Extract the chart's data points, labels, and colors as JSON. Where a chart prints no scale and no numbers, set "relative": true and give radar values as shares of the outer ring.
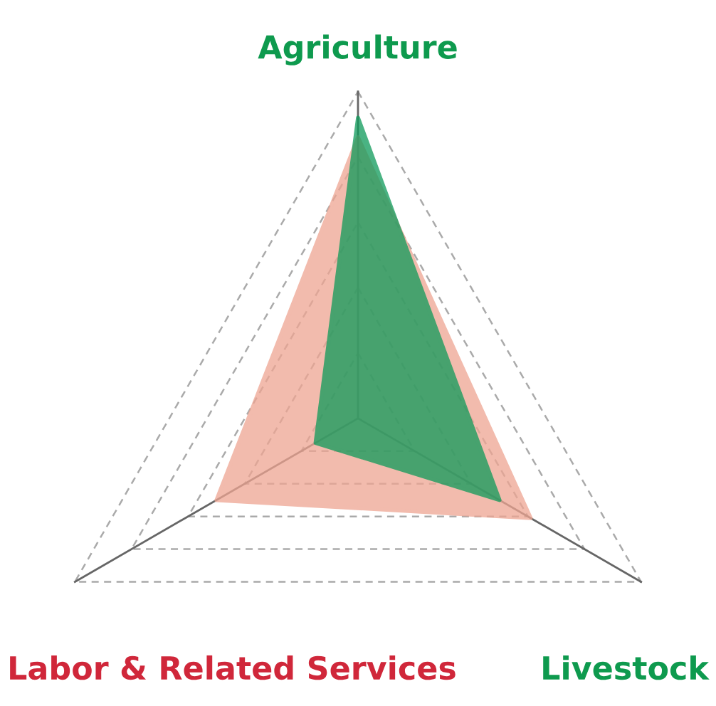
{
  "chart_data": {
    "type": "radar",
    "relative": true,
    "grid": true,
    "categories": [
      "Agriculture",
      "Livestock",
      "Labor & Related Services"
    ],
    "colors": [
      "#0e9a4e",
      "#0e9a4e",
      "#d0273a"
    ],
    "series": [
      {
        "color": "#eea592",
        "values": [
          0.86,
          0.61,
          0.5
        ]
      },
      {
        "color": "#0e9a5a",
        "values": [
          0.92,
          0.5,
          0.15
        ]
      }
    ]
  }
}
